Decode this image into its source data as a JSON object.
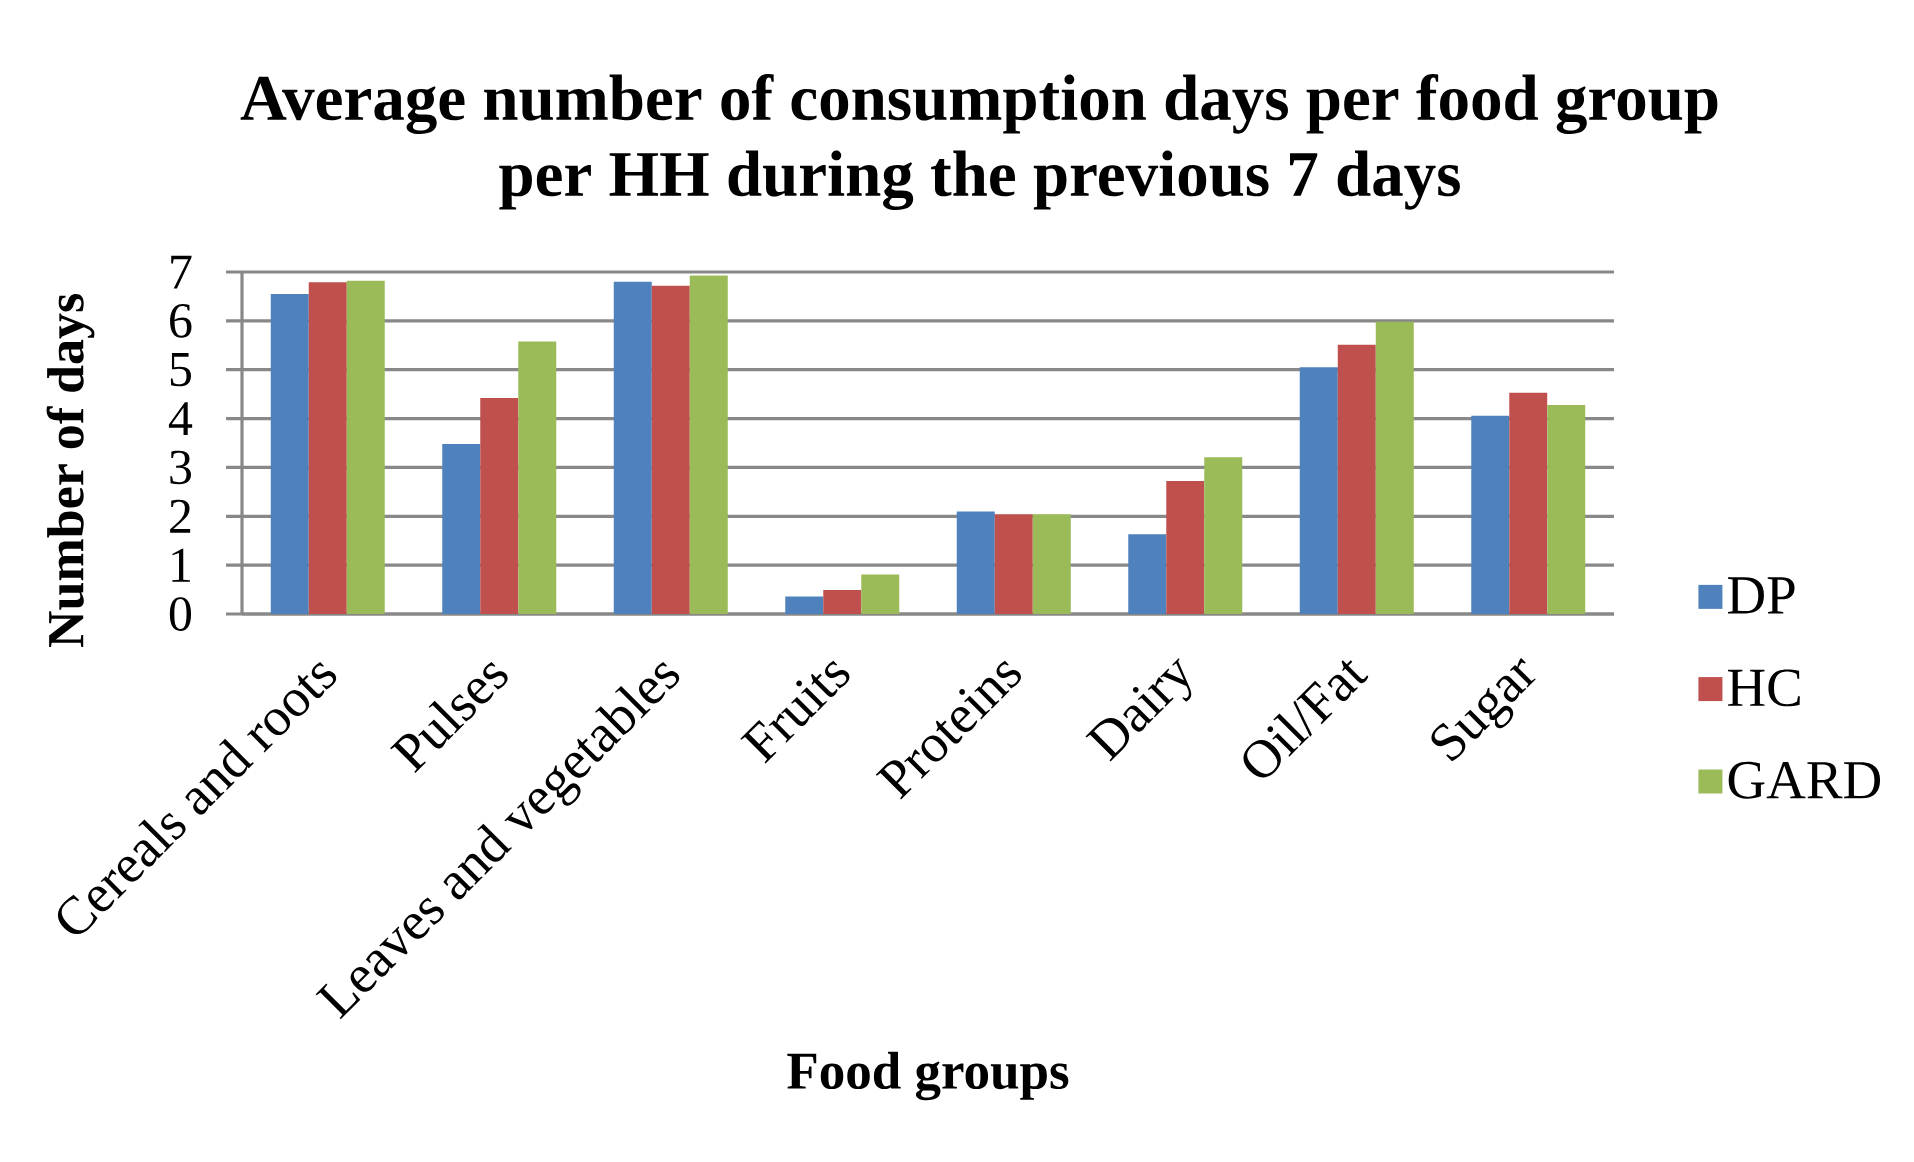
{
  "chart_data": {
    "type": "bar",
    "title": "Average number of consumption days per food group per HH during the previous 7 days",
    "xlabel": "Food groups",
    "ylabel": "Number of days",
    "categories": [
      "Cereals and roots",
      "Pulses",
      "Leaves and vegetables",
      "Fruits",
      "Proteins",
      "Dairy",
      "Oil/Fat",
      "Sugar"
    ],
    "series": [
      {
        "name": "DP",
        "color": "#4f81bd",
        "values": [
          6.55,
          3.48,
          6.8,
          0.36,
          2.1,
          1.63,
          5.05,
          4.06
        ]
      },
      {
        "name": "HC",
        "color": "#c0504d",
        "values": [
          6.79,
          4.42,
          6.72,
          0.49,
          2.04,
          2.72,
          5.51,
          4.53
        ]
      },
      {
        "name": "GARD",
        "color": "#9bbb59",
        "values": [
          6.82,
          5.58,
          6.93,
          0.81,
          2.04,
          3.21,
          5.98,
          4.28
        ]
      }
    ],
    "ylim": [
      0,
      7
    ],
    "yticks": [
      0,
      1,
      2,
      3,
      4,
      5,
      6,
      7
    ],
    "grid": "y",
    "legend": "right"
  }
}
